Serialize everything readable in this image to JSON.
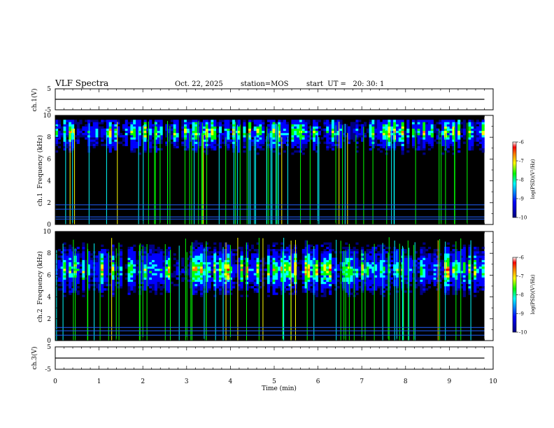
{
  "header": {
    "title": "VLF Spectra",
    "date": "Oct. 22, 2025",
    "station": "station=MOS",
    "start": "start  UT =   20: 30: 1"
  },
  "chart_data": [
    {
      "type": "line",
      "panel": "ch1-voltage",
      "ylabel": "ch.1(V)",
      "ylim": [
        -5,
        5
      ],
      "yticks": [
        "5",
        "-5"
      ],
      "x": [
        0,
        10
      ],
      "series": [
        {
          "values": [
            0,
            0
          ]
        }
      ]
    },
    {
      "type": "heatmap",
      "panel": "ch1-spectrogram",
      "ylabel": "ch.1  Frequency (kHz)",
      "ylim": [
        0,
        10
      ],
      "yticks": [
        "0",
        "2",
        "4",
        "6",
        "8",
        "10"
      ],
      "colorbar": {
        "label": "log(PSD)(V²/Hz)",
        "range": [
          -10,
          -6
        ],
        "ticks": [
          "-6",
          "-7",
          "-8",
          "-9",
          "-10"
        ]
      },
      "hum_lines_khz": [
        0.5,
        0.7,
        1.4,
        1.8
      ],
      "band_khz": [
        5,
        9.5
      ],
      "peak_khz": 8.5
    },
    {
      "type": "heatmap",
      "panel": "ch2-spectrogram",
      "ylabel": "ch.2  Frequency (kHz)",
      "ylim": [
        0,
        10
      ],
      "yticks": [
        "0",
        "2",
        "4",
        "6",
        "8",
        "10"
      ],
      "colorbar": {
        "label": "log(PSD)(V²/Hz)",
        "range": [
          -10,
          -6
        ],
        "ticks": [
          "-6",
          "-7",
          "-8",
          "-9",
          "-10"
        ]
      },
      "hum_lines_khz": [
        0.5,
        0.9,
        1.2
      ],
      "band_khz": [
        4,
        9.5
      ],
      "peak_khz": 6.5
    },
    {
      "type": "line",
      "panel": "ch3-voltage",
      "ylabel": "ch.3(V)",
      "ylim": [
        -5,
        5
      ],
      "yticks": [
        "5",
        "-5"
      ],
      "x": [
        0,
        10
      ],
      "series": [
        {
          "values": [
            0,
            0
          ]
        }
      ]
    }
  ],
  "xaxis": {
    "label": "Time (min)",
    "range": [
      0,
      10
    ],
    "ticks": [
      "0",
      "1",
      "2",
      "3",
      "4",
      "5",
      "6",
      "7",
      "8",
      "9",
      "10"
    ],
    "data_end": 9.8
  },
  "colors": {
    "background": "#000000",
    "colormap": [
      "#000080",
      "#0000ff",
      "#00ffff",
      "#00ff00",
      "#ffff00",
      "#ff8000",
      "#ff0000",
      "#ffffff"
    ]
  }
}
